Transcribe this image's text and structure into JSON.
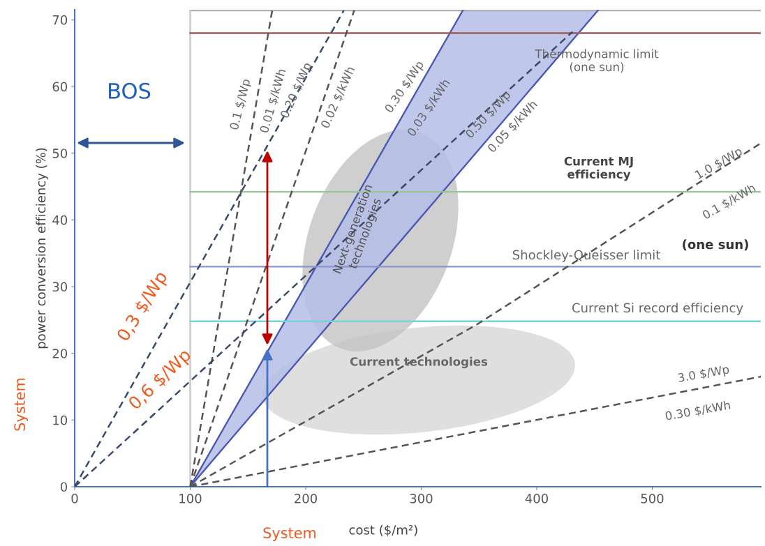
{
  "chart_data": {
    "type": "line",
    "xlabel": "cost ($/m²)",
    "ylabel": "power conversion efficiency (%)",
    "xlim": [
      0,
      594
    ],
    "ylim": [
      0,
      71.5
    ],
    "xticks": [
      0,
      100,
      200,
      300,
      400,
      500
    ],
    "yticks": [
      0,
      10,
      20,
      30,
      40,
      50,
      60,
      70
    ],
    "series": [
      {
        "x": [
          100,
          594
        ],
        "values": [
          71.4,
          71.4
        ],
        "color": "#b0b0b0",
        "line_style": "solid"
      },
      {
        "x": [
          100,
          336
        ],
        "values": [
          0,
          71.4
        ],
        "color": "#4a58b0",
        "line_style": "solid"
      },
      {
        "x": [
          100,
          453
        ],
        "values": [
          0,
          71.4
        ],
        "color": "#4a58b0",
        "line_style": "solid"
      },
      {
        "x": [
          100,
          100
        ],
        "values": [
          0,
          71.4
        ],
        "color": "#c8c8c8",
        "line_style": "solid"
      },
      {
        "x": [
          100,
          594
        ],
        "values": [
          68,
          68
        ],
        "color": "#a05a5a",
        "line_style": "solid"
      },
      {
        "x": [
          100,
          594
        ],
        "values": [
          44.2,
          44.2
        ],
        "color": "#94c994",
        "line_style": "solid"
      },
      {
        "x": [
          100,
          594
        ],
        "values": [
          33,
          33
        ],
        "color": "#8a96cc",
        "line_style": "solid"
      },
      {
        "x": [
          100,
          594
        ],
        "values": [
          24.8,
          24.8
        ],
        "color": "#7fcfd8",
        "line_style": "solid"
      },
      {
        "x": [
          100,
          171
        ],
        "values": [
          0,
          71.4
        ],
        "color": "#555555",
        "line_style": "dashed"
      },
      {
        "x": [
          100,
          242
        ],
        "values": [
          0,
          71.4
        ],
        "color": "#555555",
        "line_style": "dashed"
      },
      {
        "x": [
          100,
          348,
          594
        ],
        "values": [
          0,
          24.3,
          51.5
        ],
        "color": "#555555",
        "line_style": "dashed"
      },
      {
        "x": [
          100,
          594
        ],
        "values": [
          0,
          16.5
        ],
        "color": "#555555",
        "line_style": "dashed"
      },
      {
        "x": [
          0,
          233
        ],
        "values": [
          0,
          71.4
        ],
        "color": "#3a4a6b",
        "line_style": "dashed"
      },
      {
        "x": [
          0,
          431
        ],
        "values": [
          0,
          68.2
        ],
        "color": "#3a4a6b",
        "line_style": "dashed"
      }
    ],
    "annotations": [
      "BOS",
      "System",
      "System",
      "Thermodynamic limit\n(one sun)",
      "Current MJ\nefficiency",
      "Shockley-Queisser limit",
      "(one sun)",
      "Current Si record efficiency",
      "Current technologies",
      "Next-generation\ntechnologies",
      "0.1 $/Wp",
      "0.01 $/kWh",
      "0.20 $/Wp",
      "0.02 $/kWh",
      "0.30 $/Wp",
      "0.03 $/kWh",
      "0.50 $/Wp",
      "0.05 $/kWh",
      "1.0 $/Wp",
      "0.1 $/kWh",
      "3.0 $/Wp",
      "0.30 $/kWh",
      "0,3 $/Wp",
      "0,6 $/Wp"
    ]
  }
}
